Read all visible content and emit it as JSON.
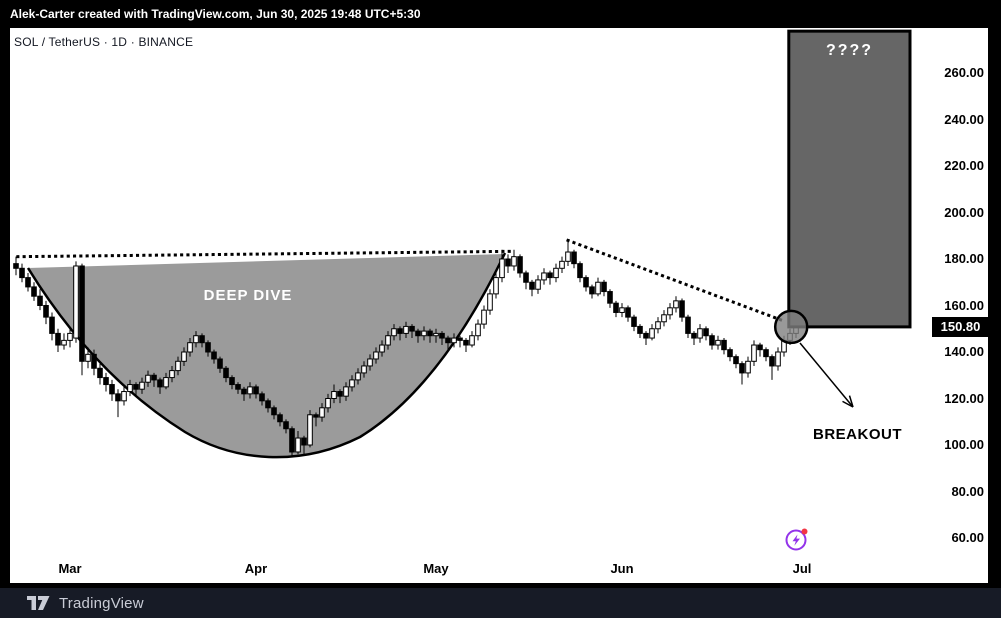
{
  "attribution_bar": {
    "text": "Alek-Carter created with TradingView.com, Jun 30, 2025 19:48 UTC+5:30"
  },
  "symbol_bar": {
    "text": "SOL / TetherUS · 1D · BINANCE"
  },
  "annotations": {
    "cup_label": "DEEP DIVE",
    "box_label": "????",
    "breakout_label": "BREAKOUT"
  },
  "price_scale": {
    "ticks": [
      "260.00",
      "240.00",
      "220.00",
      "200.00",
      "180.00",
      "160.00",
      "140.00",
      "120.00",
      "100.00",
      "80.00",
      "60.00"
    ],
    "tick_values": [
      260,
      240,
      220,
      200,
      180,
      160,
      140,
      120,
      100,
      80,
      60
    ],
    "last_price": "150.80",
    "last_price_value": 150.8
  },
  "time_scale": {
    "months": [
      {
        "label": "Mar",
        "index": 9
      },
      {
        "label": "Apr",
        "index": 40
      },
      {
        "label": "May",
        "index": 70
      },
      {
        "label": "Jun",
        "index": 101
      },
      {
        "label": "Jul",
        "index": 131
      }
    ]
  },
  "footer": {
    "brand": "TradingView"
  },
  "colors": {
    "background": "#000000",
    "panel": "#ffffff",
    "candle_up": "#ffffff",
    "candle_down": "#000000",
    "candle_border": "#000000",
    "cup_fill": "#9b9b9b",
    "box_fill": "#666666",
    "box_border": "#000000",
    "badge_bg": "#000000",
    "badge_text": "#ffffff",
    "accent_purple": "#9333ea",
    "accent_red": "#f23645",
    "footer_bg": "#171b26",
    "footer_text": "#c9ccd6"
  },
  "chart_data": {
    "type": "candlestick",
    "symbol": "SOL/USDT",
    "interval": "1D",
    "exchange": "BINANCE",
    "x_unit": "day",
    "ylim": [
      55,
      270
    ],
    "grid": false,
    "candles": [
      [
        178,
        181,
        173,
        176
      ],
      [
        176,
        178,
        170,
        172
      ],
      [
        172,
        174,
        166,
        168
      ],
      [
        168,
        170,
        162,
        164
      ],
      [
        164,
        167,
        158,
        160
      ],
      [
        160,
        162,
        152,
        155
      ],
      [
        155,
        157,
        145,
        148
      ],
      [
        148,
        150,
        140,
        143
      ],
      [
        143,
        148,
        141,
        145
      ],
      [
        145,
        150,
        142,
        148
      ],
      [
        146,
        179,
        144,
        177
      ],
      [
        177,
        178,
        130,
        136
      ],
      [
        136,
        142,
        133,
        139
      ],
      [
        139,
        141,
        130,
        133
      ],
      [
        133,
        135,
        126,
        129
      ],
      [
        129,
        131,
        123,
        126
      ],
      [
        126,
        128,
        119,
        122
      ],
      [
        122,
        124,
        112,
        119
      ],
      [
        119,
        125,
        117,
        123
      ],
      [
        123,
        128,
        121,
        126
      ],
      [
        126,
        127,
        121,
        124
      ],
      [
        124,
        129,
        122,
        127
      ],
      [
        127,
        132,
        125,
        130
      ],
      [
        130,
        131,
        125,
        128
      ],
      [
        128,
        129,
        122,
        125
      ],
      [
        125,
        131,
        124,
        129
      ],
      [
        129,
        134,
        127,
        132
      ],
      [
        132,
        138,
        130,
        136
      ],
      [
        136,
        142,
        134,
        140
      ],
      [
        140,
        146,
        138,
        144
      ],
      [
        144,
        149,
        142,
        147
      ],
      [
        147,
        148,
        142,
        144
      ],
      [
        144,
        145,
        138,
        140
      ],
      [
        140,
        141,
        135,
        137
      ],
      [
        137,
        138,
        131,
        133
      ],
      [
        133,
        134,
        127,
        129
      ],
      [
        129,
        130,
        124,
        126
      ],
      [
        126,
        127,
        122,
        124
      ],
      [
        124,
        125,
        119,
        122
      ],
      [
        122,
        127,
        120,
        125
      ],
      [
        125,
        126,
        120,
        122
      ],
      [
        122,
        123,
        117,
        119
      ],
      [
        119,
        120,
        114,
        116
      ],
      [
        116,
        117,
        111,
        113
      ],
      [
        113,
        114,
        108,
        110
      ],
      [
        110,
        111,
        105,
        107
      ],
      [
        107,
        108,
        95,
        97
      ],
      [
        97,
        106,
        96,
        103
      ],
      [
        103,
        104,
        96,
        100
      ],
      [
        100,
        115,
        99,
        113
      ],
      [
        113,
        114,
        108,
        112
      ],
      [
        112,
        118,
        110,
        116
      ],
      [
        116,
        122,
        114,
        120
      ],
      [
        120,
        126,
        118,
        123
      ],
      [
        123,
        124,
        118,
        121
      ],
      [
        121,
        127,
        119,
        125
      ],
      [
        125,
        130,
        123,
        128
      ],
      [
        128,
        133,
        126,
        131
      ],
      [
        131,
        136,
        129,
        134
      ],
      [
        134,
        139,
        132,
        137
      ],
      [
        137,
        142,
        135,
        140
      ],
      [
        140,
        145,
        138,
        143
      ],
      [
        143,
        149,
        141,
        147
      ],
      [
        147,
        152,
        145,
        150
      ],
      [
        150,
        151,
        145,
        148
      ],
      [
        148,
        153,
        146,
        151
      ],
      [
        151,
        152,
        146,
        149
      ],
      [
        149,
        150,
        144,
        147
      ],
      [
        147,
        151,
        145,
        149
      ],
      [
        149,
        150,
        144,
        147
      ],
      [
        147,
        150,
        144,
        148
      ],
      [
        148,
        149,
        143,
        146
      ],
      [
        146,
        147,
        141,
        144
      ],
      [
        144,
        148,
        142,
        146
      ],
      [
        146,
        147,
        142,
        145
      ],
      [
        145,
        146,
        140,
        143
      ],
      [
        143,
        149,
        142,
        147
      ],
      [
        147,
        154,
        145,
        152
      ],
      [
        152,
        160,
        150,
        158
      ],
      [
        158,
        167,
        156,
        165
      ],
      [
        165,
        174,
        163,
        172
      ],
      [
        172,
        184,
        170,
        180
      ],
      [
        180,
        182,
        174,
        177
      ],
      [
        177,
        184,
        175,
        181
      ],
      [
        181,
        182,
        172,
        174
      ],
      [
        174,
        175,
        167,
        170
      ],
      [
        170,
        171,
        164,
        167
      ],
      [
        167,
        173,
        165,
        171
      ],
      [
        171,
        176,
        169,
        174
      ],
      [
        174,
        175,
        169,
        172
      ],
      [
        172,
        178,
        170,
        176
      ],
      [
        176,
        181,
        174,
        179
      ],
      [
        179,
        188,
        177,
        183
      ],
      [
        183,
        184,
        176,
        178
      ],
      [
        178,
        179,
        170,
        172
      ],
      [
        172,
        173,
        166,
        168
      ],
      [
        168,
        169,
        163,
        165
      ],
      [
        165,
        172,
        164,
        170
      ],
      [
        170,
        171,
        164,
        166
      ],
      [
        166,
        167,
        159,
        161
      ],
      [
        161,
        162,
        155,
        157
      ],
      [
        157,
        161,
        155,
        159
      ],
      [
        159,
        160,
        153,
        155
      ],
      [
        155,
        156,
        149,
        151
      ],
      [
        151,
        152,
        146,
        148
      ],
      [
        148,
        149,
        143,
        146
      ],
      [
        146,
        152,
        145,
        150
      ],
      [
        150,
        155,
        148,
        153
      ],
      [
        153,
        158,
        151,
        156
      ],
      [
        156,
        161,
        154,
        159
      ],
      [
        159,
        164,
        157,
        162
      ],
      [
        162,
        163,
        153,
        155
      ],
      [
        155,
        156,
        146,
        148
      ],
      [
        148,
        149,
        143,
        146
      ],
      [
        146,
        152,
        144,
        150
      ],
      [
        150,
        151,
        145,
        147
      ],
      [
        147,
        148,
        141,
        143
      ],
      [
        143,
        147,
        141,
        145
      ],
      [
        145,
        146,
        139,
        141
      ],
      [
        141,
        142,
        136,
        138
      ],
      [
        138,
        139,
        133,
        135
      ],
      [
        135,
        136,
        126,
        131
      ],
      [
        131,
        138,
        129,
        136
      ],
      [
        136,
        145,
        134,
        143
      ],
      [
        143,
        144,
        138,
        141
      ],
      [
        141,
        142,
        136,
        138
      ],
      [
        138,
        139,
        128,
        134
      ],
      [
        134,
        142,
        132,
        140
      ],
      [
        140,
        147,
        138,
        145
      ],
      [
        145,
        150,
        143,
        148
      ],
      [
        148,
        152,
        146,
        150.8
      ]
    ],
    "overlays": {
      "cup": {
        "label": "DEEP DIVE",
        "start_index": 2,
        "bottom_index": 43,
        "end_index": 82,
        "rim_price": 181,
        "bottom_price": 96
      },
      "resistance_dotted_line": {
        "from_index": 0.3,
        "from_price": 181,
        "to_index": 82.6,
        "to_price": 183.3
      },
      "descending_dotted_trendline": {
        "from_index": 92,
        "from_price": 188,
        "to_index": 127.8,
        "to_price": 153.5
      },
      "projection_box": {
        "label": "????",
        "from_index": 128.8,
        "to_index": 149,
        "from_price": 150.8,
        "to_price": 278
      },
      "breakout_circle": {
        "index": 129.2,
        "price": 150.8,
        "radius_px": 16
      },
      "breakout_arrow_label": "BREAKOUT"
    }
  }
}
